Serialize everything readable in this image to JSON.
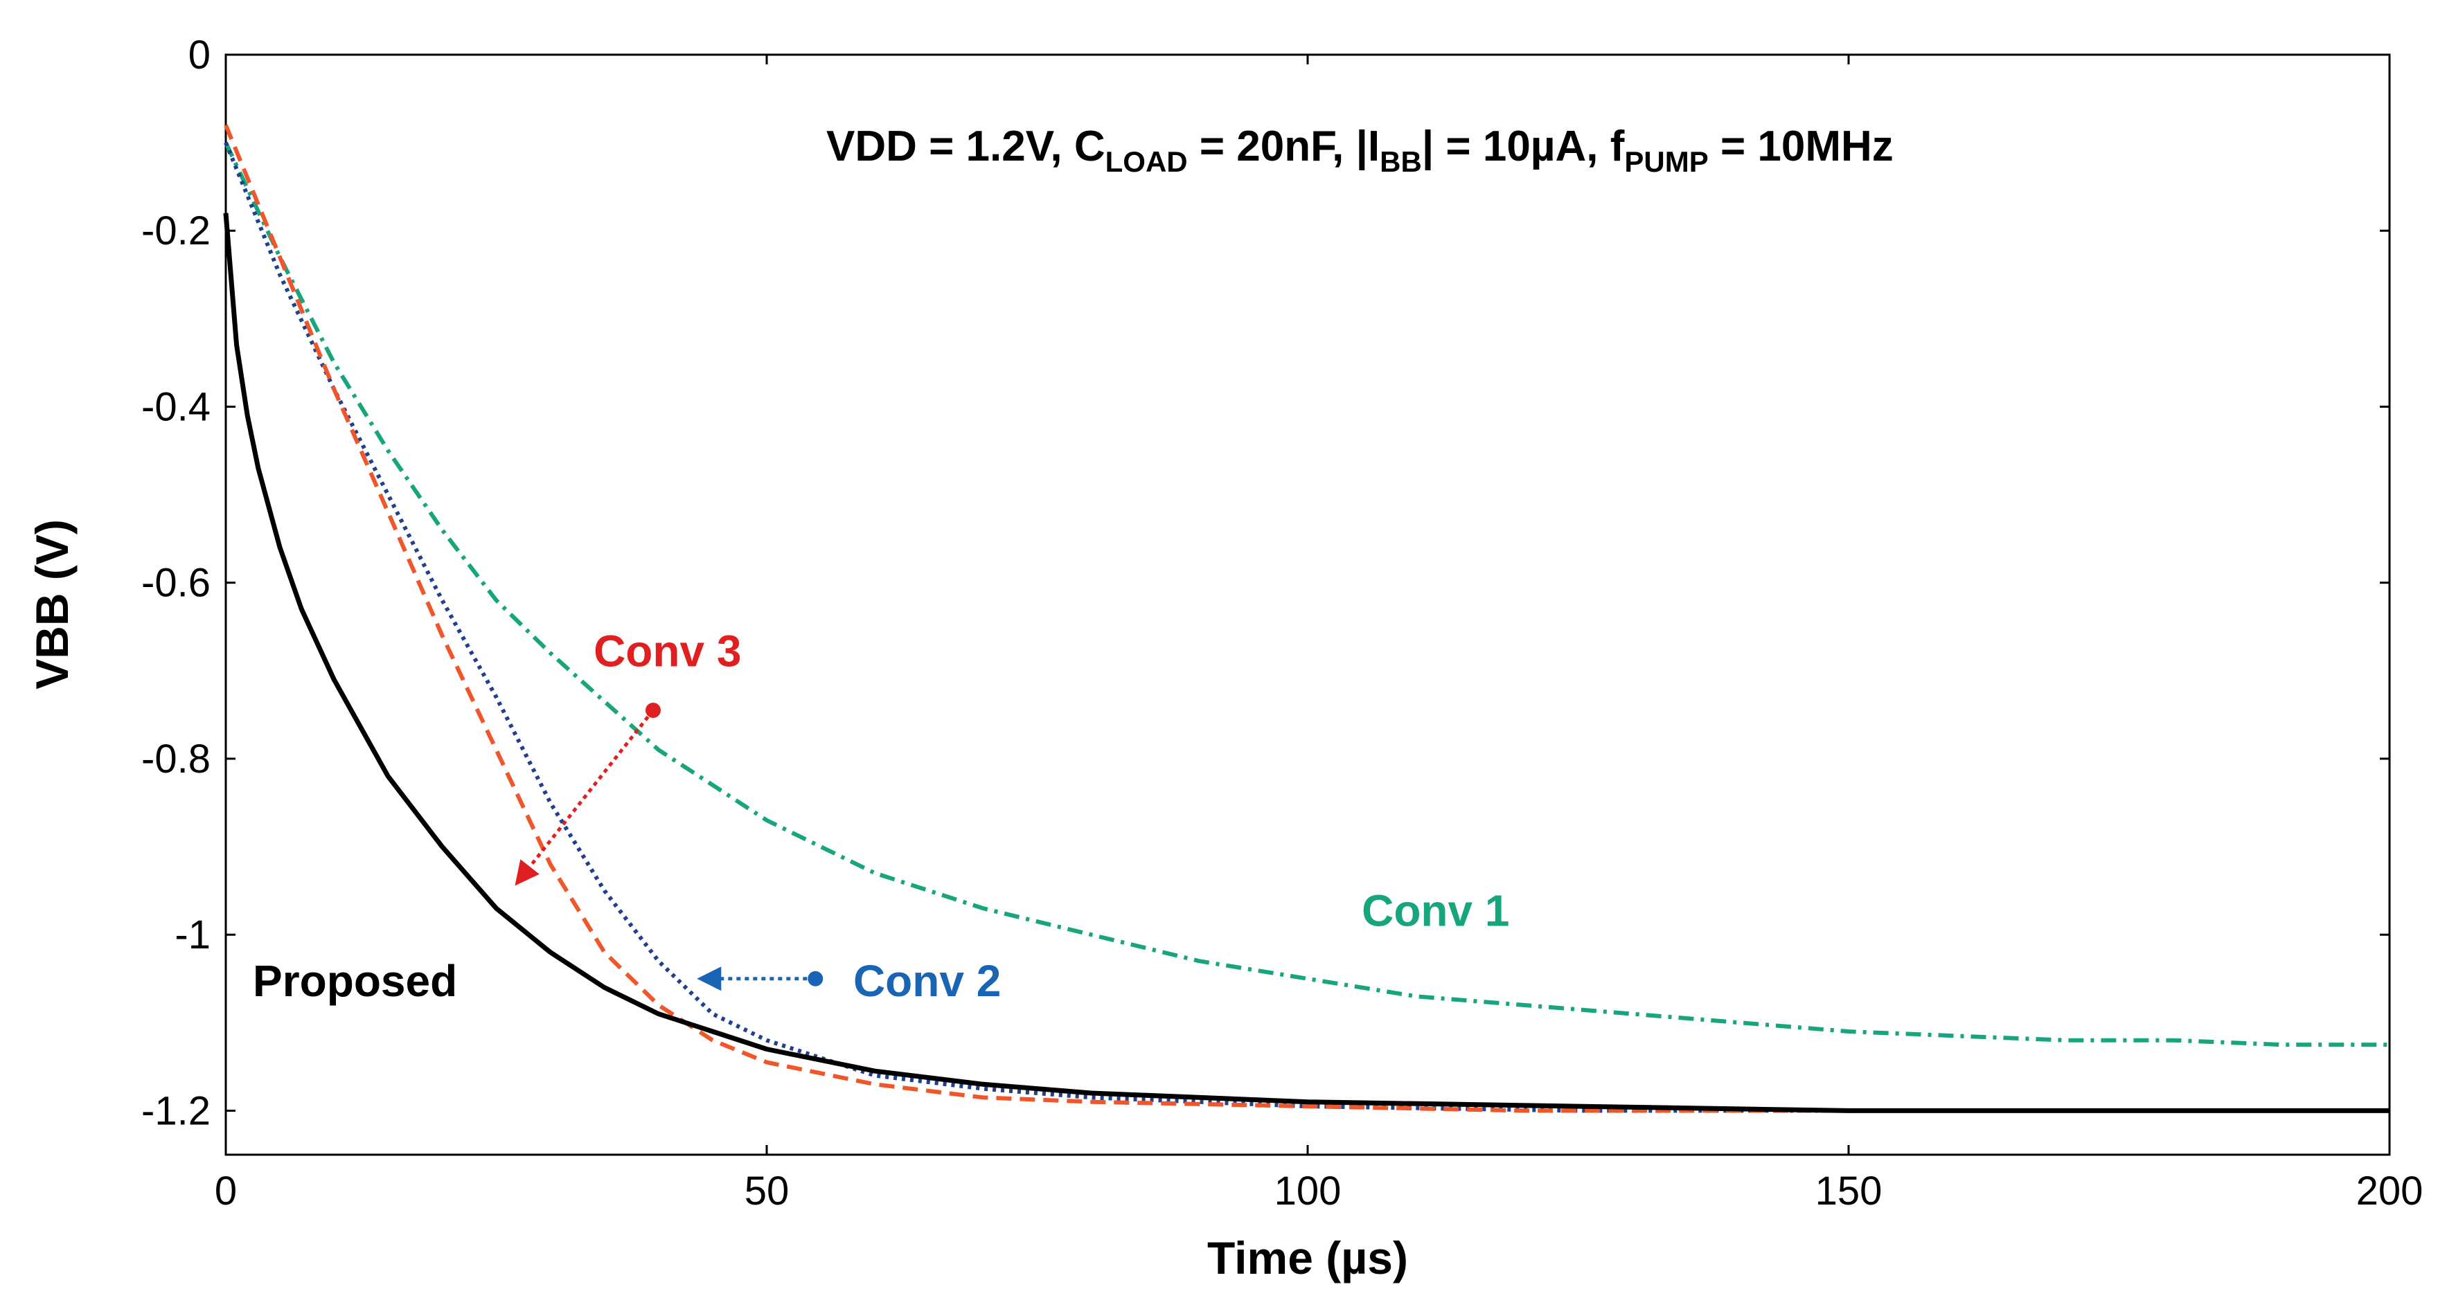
{
  "chart_data": {
    "type": "line",
    "xlabel": "Time (µs)",
    "ylabel": "VBB (V)",
    "xlim": [
      0,
      200
    ],
    "ylim": [
      -1.25,
      0
    ],
    "xticks": [
      0,
      50,
      100,
      150,
      200
    ],
    "yticks": [
      0,
      -0.2,
      -0.4,
      -0.6,
      -0.8,
      -1,
      -1.2
    ],
    "xtick_labels": [
      "0",
      "50",
      "100",
      "150",
      "200"
    ],
    "ytick_labels": [
      "0",
      "-0.2",
      "-0.4",
      "-0.6",
      "-0.8",
      "-1",
      "-1.2"
    ],
    "annotation": {
      "p1": "VDD = 1.2V, C",
      "s1": "LOAD",
      "p2": " = 20nF, |I",
      "s2": "BB",
      "p3": "| = 10µA, f",
      "s3": "PUMP",
      "p4": " = 10MHz"
    },
    "series": [
      {
        "name": "Proposed",
        "color": "#000000",
        "style": "solid",
        "x": [
          0,
          1,
          2,
          3,
          5,
          7,
          10,
          15,
          20,
          25,
          30,
          35,
          40,
          45,
          50,
          60,
          70,
          80,
          100,
          125,
          150,
          175,
          200
        ],
        "y": [
          -0.18,
          -0.33,
          -0.41,
          -0.47,
          -0.56,
          -0.63,
          -0.71,
          -0.82,
          -0.9,
          -0.97,
          -1.02,
          -1.06,
          -1.09,
          -1.11,
          -1.13,
          -1.155,
          -1.17,
          -1.18,
          -1.19,
          -1.195,
          -1.2,
          -1.2,
          -1.2
        ]
      },
      {
        "name": "Conv 1",
        "color": "#16a57c",
        "style": "dashdot",
        "x": [
          0,
          5,
          10,
          15,
          20,
          25,
          30,
          40,
          50,
          60,
          70,
          80,
          90,
          100,
          110,
          120,
          130,
          140,
          150,
          160,
          170,
          180,
          190,
          200
        ],
        "y": [
          -0.1,
          -0.23,
          -0.35,
          -0.45,
          -0.54,
          -0.62,
          -0.68,
          -0.79,
          -0.87,
          -0.93,
          -0.97,
          -1.0,
          -1.03,
          -1.05,
          -1.07,
          -1.08,
          -1.09,
          -1.1,
          -1.11,
          -1.115,
          -1.12,
          -1.12,
          -1.125,
          -1.125
        ]
      },
      {
        "name": "Conv 2",
        "color": "#1f3f8f",
        "style": "dotted",
        "x": [
          0,
          5,
          10,
          15,
          20,
          25,
          30,
          35,
          40,
          45,
          50,
          55,
          60,
          70,
          80,
          100,
          125,
          150,
          175,
          200
        ],
        "y": [
          -0.1,
          -0.25,
          -0.38,
          -0.5,
          -0.62,
          -0.73,
          -0.85,
          -0.95,
          -1.03,
          -1.09,
          -1.12,
          -1.14,
          -1.16,
          -1.175,
          -1.185,
          -1.195,
          -1.2,
          -1.2,
          -1.2,
          -1.2
        ]
      },
      {
        "name": "Conv 3",
        "color": "#f0562a",
        "style": "dashed",
        "x": [
          0,
          5,
          10,
          15,
          20,
          25,
          30,
          35,
          40,
          45,
          50,
          60,
          70,
          80,
          100,
          120,
          150
        ],
        "y": [
          -0.08,
          -0.23,
          -0.38,
          -0.52,
          -0.66,
          -0.79,
          -0.92,
          -1.02,
          -1.08,
          -1.12,
          -1.145,
          -1.17,
          -1.185,
          -1.19,
          -1.195,
          -1.2,
          -1.2
        ]
      }
    ],
    "labels": [
      {
        "text": "Proposed",
        "color": "#000000",
        "x": 2.5,
        "y": -1.07
      },
      {
        "text": "Conv 1",
        "color": "#16a57c",
        "x": 105,
        "y": -0.99
      },
      {
        "text": "Conv 2",
        "color": "#1a64b5",
        "x": 58,
        "y": -1.07
      },
      {
        "text": "Conv 3",
        "color": "#e02020",
        "x": 34,
        "y": -0.695
      }
    ],
    "arrows": [
      {
        "name": "conv3-arrow",
        "color": "#e02020",
        "from": [
          39.5,
          -0.745
        ],
        "to": [
          27,
          -0.94
        ]
      },
      {
        "name": "conv2-arrow",
        "color": "#1a64b5",
        "from": [
          54.5,
          -1.05
        ],
        "to": [
          44,
          -1.05
        ]
      }
    ]
  }
}
